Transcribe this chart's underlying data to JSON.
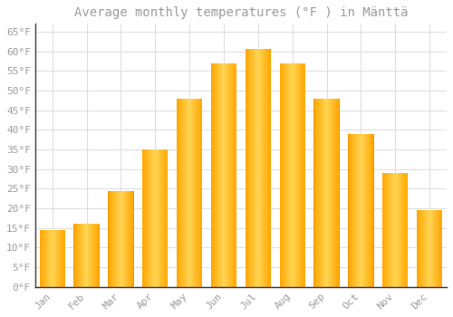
{
  "title": "Average monthly temperatures (°F ) in Mänttä",
  "months": [
    "Jan",
    "Feb",
    "Mar",
    "Apr",
    "May",
    "Jun",
    "Jul",
    "Aug",
    "Sep",
    "Oct",
    "Nov",
    "Dec"
  ],
  "values": [
    14.5,
    16.0,
    24.5,
    35.0,
    48.0,
    57.0,
    60.5,
    57.0,
    48.0,
    39.0,
    29.0,
    19.5
  ],
  "bar_color_light": "#FFD966",
  "bar_color_mid": "#FFBB33",
  "bar_color_dark": "#FFA500",
  "background_color": "#FFFFFF",
  "grid_color": "#DDDDDD",
  "text_color": "#999999",
  "spine_color": "#333333",
  "ylim": [
    0,
    67
  ],
  "yticks": [
    0,
    5,
    10,
    15,
    20,
    25,
    30,
    35,
    40,
    45,
    50,
    55,
    60,
    65
  ],
  "title_fontsize": 10,
  "tick_fontsize": 8,
  "font_family": "monospace",
  "bar_width": 0.75
}
